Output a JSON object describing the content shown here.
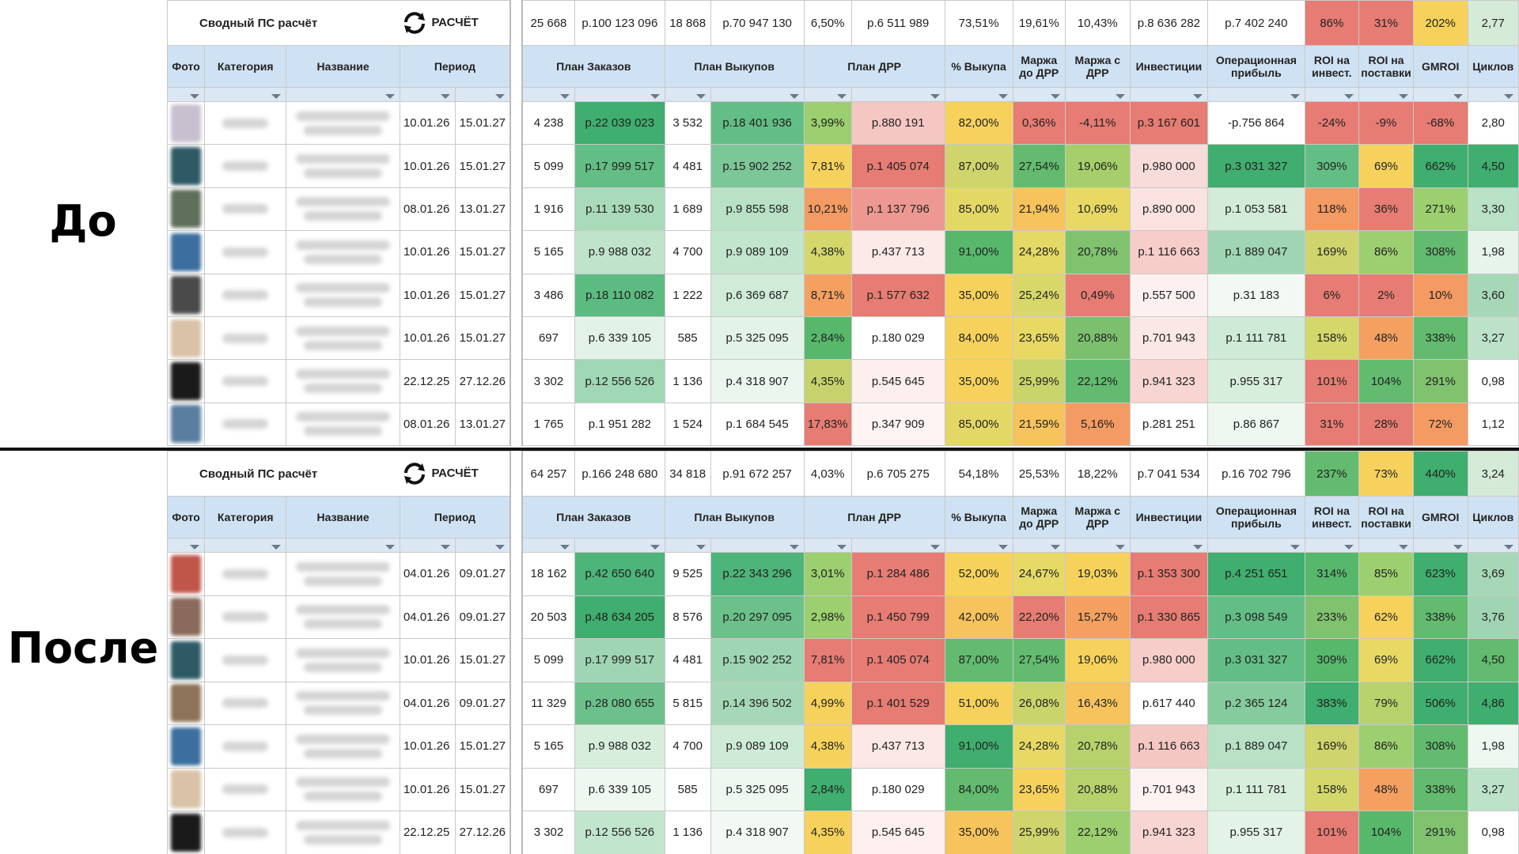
{
  "labels": {
    "before": "До",
    "after": "После"
  },
  "header": {
    "title": "Сводный ПС расчёт",
    "logo_text": "РАСЧЁТ",
    "columns": [
      "Фото",
      "Категория",
      "Название",
      "Период",
      "План Заказов",
      "План Выкупов",
      "План ДРР",
      "% Выкупа",
      "Маржа до ДРР",
      "Маржа с ДРР",
      "Инвестиции",
      "Операционная прибыль",
      "ROI на инвест.",
      "ROI на поставки",
      "GMROI",
      "Циклов"
    ]
  },
  "before": {
    "summary": [
      "25 668",
      "р.100 123 096",
      "18 868",
      "р.70 947 130",
      "6,50%",
      "р.6 511 989",
      "73,51%",
      "19,61%",
      "10,43%",
      "р.8 636 282",
      "р.7 402 240",
      "86%",
      "31%",
      "202%",
      "2,77"
    ],
    "summary_colors": [
      "#fff",
      "#fff",
      "#fff",
      "#fff",
      "#fff",
      "#fff",
      "#fff",
      "#fff",
      "#fff",
      "#fff",
      "#fff",
      "#e67c73",
      "#e67c73",
      "#f6d25c",
      "#d5ead7"
    ],
    "rows": [
      {
        "photo": "#c9c0cf",
        "p1": "10.01.26",
        "p2": "15.01.27",
        "v": [
          "4 238",
          "р.22 039 023",
          "3 532",
          "р.18 401 936",
          "3,99%",
          "р.880 191",
          "82,00%",
          "0,36%",
          "-4,11%",
          "р.3 167 601",
          "-р.756 864",
          "-24%",
          "-9%",
          "-68%",
          "2,80"
        ],
        "c": [
          "#fff",
          "#3fae6e",
          "#fff",
          "#63be85",
          "#9ccf6f",
          "#f4c7c3",
          "#f6d25c",
          "#e67c73",
          "#e67c73",
          "#e67c73",
          "#fff",
          "#e67c73",
          "#e67c73",
          "#e67c73",
          "#fff"
        ]
      },
      {
        "photo": "#2e5a66",
        "p1": "10.01.26",
        "p2": "15.01.27",
        "v": [
          "5 099",
          "р.17 999 517",
          "4 481",
          "р.15 902 252",
          "7,81%",
          "р.1 405 074",
          "87,00%",
          "27,54%",
          "19,06%",
          "р.980 000",
          "р.3 031 327",
          "309%",
          "69%",
          "662%",
          "4,50"
        ],
        "c": [
          "#fff",
          "#63be85",
          "#fff",
          "#7cc797",
          "#f6d25c",
          "#e67c73",
          "#cfd46c",
          "#62bb6e",
          "#a6cf6b",
          "#f8dcda",
          "#3fae6e",
          "#63be85",
          "#f6d25c",
          "#3fae6e",
          "#3fae6e"
        ]
      },
      {
        "photo": "#5f6f5a",
        "p1": "08.01.26",
        "p2": "13.01.27",
        "v": [
          "1 916",
          "р.11 139 530",
          "1 689",
          "р.9 855 598",
          "10,21%",
          "р.1 137 796",
          "85,00%",
          "21,94%",
          "10,69%",
          "р.890 000",
          "р.1 053 581",
          "118%",
          "36%",
          "271%",
          "3,30"
        ],
        "c": [
          "#fff",
          "#a9dbbb",
          "#fff",
          "#b8e1c6",
          "#f39b63",
          "#ed9991",
          "#e3d866",
          "#f6c35c",
          "#e8d965",
          "#fae3e1",
          "#d3ecd9",
          "#f39b63",
          "#e67c73",
          "#9ccf6f",
          "#b8e1c6"
        ]
      },
      {
        "photo": "#3d6f9e",
        "p1": "10.01.26",
        "p2": "15.01.27",
        "v": [
          "5 165",
          "р.9 988 032",
          "4 700",
          "р.9 089 109",
          "4,38%",
          "р.437 713",
          "91,00%",
          "24,28%",
          "20,78%",
          "р.1 116 663",
          "р.1 889 047",
          "169%",
          "86%",
          "308%",
          "1,98"
        ],
        "c": [
          "#fff",
          "#bfe4cb",
          "#fff",
          "#c2e5cd",
          "#d4d86a",
          "#fbeae8",
          "#57b86c",
          "#e5d966",
          "#80c26e",
          "#f6cdc9",
          "#9fd5b3",
          "#cfd46c",
          "#9ccf6f",
          "#62bb6e",
          "#e6f4ea"
        ]
      },
      {
        "photo": "#4a4a4a",
        "p1": "10.01.26",
        "p2": "15.01.27",
        "v": [
          "3 486",
          "р.18 110 082",
          "1 222",
          "р.6 369 687",
          "8,71%",
          "р.1 577 632",
          "35,00%",
          "25,24%",
          "0,49%",
          "р.557 500",
          "р.31 183",
          "6%",
          "2%",
          "10%",
          "3,60"
        ],
        "c": [
          "#fff",
          "#5cbb81",
          "#fff",
          "#d1ebd9",
          "#f3a061",
          "#e67c73",
          "#f6d25c",
          "#d8d86a",
          "#e67c73",
          "#fcf1f0",
          "#f2f9f4",
          "#e67c73",
          "#e67c73",
          "#f39b63",
          "#a6d8b8"
        ]
      },
      {
        "photo": "#d9c2a7",
        "p1": "10.01.26",
        "p2": "15.01.27",
        "v": [
          "697",
          "р.6 339 105",
          "585",
          "р.5 325 095",
          "2,84%",
          "р.180 029",
          "84,00%",
          "23,65%",
          "20,88%",
          "р.701 943",
          "р.1 111 781",
          "158%",
          "48%",
          "338%",
          "3,27"
        ],
        "c": [
          "#fff",
          "#e2f2e7",
          "#fff",
          "#e4f3e8",
          "#57b86c",
          "#fff",
          "#f6d25c",
          "#e8d965",
          "#7cc06e",
          "#fbe8e6",
          "#cdebd6",
          "#d4d86a",
          "#f3a061",
          "#62bb6e",
          "#bce3c9"
        ]
      },
      {
        "photo": "#1a1a1a",
        "p1": "22.12.25",
        "p2": "27.12.26",
        "v": [
          "3 302",
          "р.12 556 526",
          "1 136",
          "р.4 318 907",
          "4,35%",
          "р.545 645",
          "35,00%",
          "25,99%",
          "22,12%",
          "р.941 323",
          "р.955 317",
          "101%",
          "104%",
          "291%",
          "0,98"
        ],
        "c": [
          "#fff",
          "#a0d7b4",
          "#fff",
          "#ebf6ee",
          "#c6d36c",
          "#fcefee",
          "#f6d25c",
          "#c9d46b",
          "#62bb6e",
          "#f7d5d2",
          "#d7eedd",
          "#e67c73",
          "#62bb6e",
          "#80c26e",
          "#fff"
        ]
      },
      {
        "photo": "#5a7f9e",
        "p1": "08.01.26",
        "p2": "13.01.27",
        "v": [
          "1 765",
          "р.1 951 282",
          "1 524",
          "р.1 684 545",
          "17,83%",
          "р.347 909",
          "85,00%",
          "21,59%",
          "5,16%",
          "р.281 251",
          "р.86 867",
          "31%",
          "28%",
          "72%",
          "1,12"
        ],
        "c": [
          "#fff",
          "#fff",
          "#fff",
          "#fff",
          "#e67c73",
          "#fdf4f3",
          "#e3d866",
          "#f6c35c",
          "#f39b63",
          "#fff",
          "#eef8f1",
          "#e67c73",
          "#e67c73",
          "#f39b63",
          "#fff"
        ]
      }
    ]
  },
  "after": {
    "summary": [
      "64 257",
      "р.166 248 680",
      "34 818",
      "р.91 672 257",
      "4,03%",
      "р.6 705 275",
      "54,18%",
      "25,53%",
      "18,22%",
      "р.7 041 534",
      "р.16 702 796",
      "237%",
      "73%",
      "440%",
      "3,24"
    ],
    "summary_colors": [
      "#fff",
      "#fff",
      "#fff",
      "#fff",
      "#fff",
      "#fff",
      "#fff",
      "#fff",
      "#fff",
      "#fff",
      "#fff",
      "#62bb6e",
      "#f6d25c",
      "#3fae6e",
      "#d5ead7"
    ],
    "rows": [
      {
        "photo": "#c0564a",
        "p1": "04.01.26",
        "p2": "09.01.27",
        "v": [
          "18 162",
          "р.42 650 640",
          "9 525",
          "р.22 343 296",
          "3,01%",
          "р.1 284 486",
          "52,00%",
          "24,67%",
          "19,03%",
          "р.1 353 300",
          "р.4 251 651",
          "314%",
          "85%",
          "623%",
          "3,69"
        ],
        "c": [
          "#fff",
          "#4db47a",
          "#fff",
          "#4db47a",
          "#9ccf6f",
          "#e67c73",
          "#f6d25c",
          "#e6d966",
          "#f6d25c",
          "#e67c73",
          "#3fae6e",
          "#57b86c",
          "#9ccf6f",
          "#3fae6e",
          "#a6d8b8"
        ]
      },
      {
        "photo": "#8a6a5a",
        "p1": "04.01.26",
        "p2": "09.01.27",
        "v": [
          "20 503",
          "р.48 634 205",
          "8 576",
          "р.20 297 095",
          "2,98%",
          "р.1 450 799",
          "42,00%",
          "22,20%",
          "15,27%",
          "р.1 330 865",
          "р.3 098 549",
          "233%",
          "62%",
          "338%",
          "3,76"
        ],
        "c": [
          "#fff",
          "#3fae6e",
          "#fff",
          "#6cc18b",
          "#9ccf6f",
          "#e67c73",
          "#f6c35c",
          "#e67c73",
          "#f3a061",
          "#e67c73",
          "#63be85",
          "#80c26e",
          "#f6d25c",
          "#62bb6e",
          "#9fd5b3"
        ]
      },
      {
        "photo": "#2e5a66",
        "p1": "10.01.26",
        "p2": "15.01.27",
        "v": [
          "5 099",
          "р.17 999 517",
          "4 481",
          "р.15 902 252",
          "7,81%",
          "р.1 405 074",
          "87,00%",
          "27,54%",
          "19,06%",
          "р.980 000",
          "р.3 031 327",
          "309%",
          "69%",
          "662%",
          "4,50"
        ],
        "c": [
          "#fff",
          "#9fd5b3",
          "#fff",
          "#9fd5b3",
          "#e67c73",
          "#e67c73",
          "#62bb6e",
          "#62bb6e",
          "#f6d25c",
          "#f6cdc9",
          "#63be85",
          "#57b86c",
          "#e8d965",
          "#3fae6e",
          "#62bb6e"
        ]
      },
      {
        "photo": "#8d7458",
        "p1": "04.01.26",
        "p2": "09.01.27",
        "v": [
          "11 329",
          "р.28 080 655",
          "5 815",
          "р.14 396 502",
          "4,99%",
          "р.1 401 529",
          "51,00%",
          "26,08%",
          "16,43%",
          "р.617 440",
          "р.2 365 124",
          "383%",
          "79%",
          "506%",
          "4,86"
        ],
        "c": [
          "#fff",
          "#6cc18b",
          "#fff",
          "#a6d8b8",
          "#f6d25c",
          "#e67c73",
          "#f6d25c",
          "#c9d46b",
          "#f6c35c",
          "#fff",
          "#86cb9e",
          "#3fae6e",
          "#b7d26c",
          "#3fae6e",
          "#3fae6e"
        ]
      },
      {
        "photo": "#3d6f9e",
        "p1": "10.01.26",
        "p2": "15.01.27",
        "v": [
          "5 165",
          "р.9 988 032",
          "4 700",
          "р.9 089 109",
          "4,38%",
          "р.437 713",
          "91,00%",
          "24,28%",
          "20,78%",
          "р.1 116 663",
          "р.1 889 047",
          "169%",
          "86%",
          "308%",
          "1,98"
        ],
        "c": [
          "#fff",
          "#d7eedd",
          "#fff",
          "#cdebd6",
          "#f6d25c",
          "#fce8e6",
          "#3fae6e",
          "#e8d965",
          "#b7d26c",
          "#f4c7c3",
          "#b8e1c6",
          "#cfd46c",
          "#9ccf6f",
          "#62bb6e",
          "#eef8f1"
        ]
      },
      {
        "photo": "#d9c2a7",
        "p1": "10.01.26",
        "p2": "15.01.27",
        "v": [
          "697",
          "р.6 339 105",
          "585",
          "р.5 325 095",
          "2,84%",
          "р.180 029",
          "84,00%",
          "23,65%",
          "20,88%",
          "р.701 943",
          "р.1 111 781",
          "158%",
          "48%",
          "338%",
          "3,27"
        ],
        "c": [
          "#fff",
          "#eef8f1",
          "#fff",
          "#eef8f1",
          "#3fae6e",
          "#fff",
          "#62bb6e",
          "#f6d25c",
          "#b7d26c",
          "#fdf2f1",
          "#d7eedd",
          "#d4d86a",
          "#f3a061",
          "#62bb6e",
          "#bce3c9"
        ]
      },
      {
        "photo": "#1a1a1a",
        "p1": "22.12.25",
        "p2": "27.12.26",
        "v": [
          "3 302",
          "р.12 556 526",
          "1 136",
          "р.4 318 907",
          "4,35%",
          "р.545 645",
          "35,00%",
          "25,99%",
          "22,12%",
          "р.941 323",
          "р.955 317",
          "101%",
          "104%",
          "291%",
          "0,98"
        ],
        "c": [
          "#fff",
          "#c2e5cd",
          "#fff",
          "#f2f9f4",
          "#f6d25c",
          "#fdf0ef",
          "#f6c35c",
          "#cfd46c",
          "#9ccf6f",
          "#f6d5d2",
          "#e4f3e8",
          "#e67c73",
          "#57b86c",
          "#80c26e",
          "#fff"
        ]
      }
    ]
  }
}
